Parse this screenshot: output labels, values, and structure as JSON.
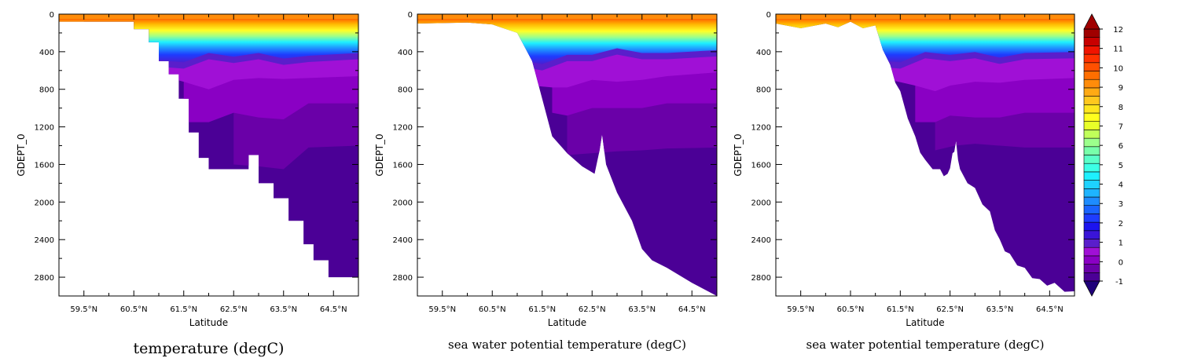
{
  "chart_data": {
    "type": "heatmap",
    "x_ticks": [
      "59.5°N",
      "60.5°N",
      "61.5°N",
      "62.5°N",
      "63.5°N",
      "64.5°N"
    ],
    "x_tick_values": [
      59.5,
      60.5,
      61.5,
      62.5,
      63.5,
      64.5
    ],
    "xlim": [
      59.0,
      65.0
    ],
    "y_ticks": [
      "0",
      "400",
      "800",
      "1200",
      "1600",
      "2000",
      "2400",
      "2800"
    ],
    "y_tick_values": [
      0,
      400,
      800,
      1200,
      1600,
      2000,
      2400,
      2800
    ],
    "ylim": [
      3000,
      0
    ],
    "colorbar": {
      "labels": [
        "12",
        "11",
        "10",
        "9",
        "8",
        "7",
        "6",
        "5",
        "4",
        "3",
        "2",
        "1",
        "0",
        "-1"
      ],
      "label_values": [
        12,
        11,
        10,
        9,
        8,
        7,
        6,
        5,
        4,
        3,
        2,
        1,
        0,
        -1
      ],
      "level_step": 0.5,
      "colors": [
        "#4b0096",
        "#6a00a8",
        "#8a00c4",
        "#a010d6",
        "#5a1ecb",
        "#3a14d8",
        "#1c14ef",
        "#1e3cff",
        "#1a64ff",
        "#1e8cff",
        "#1eb4ff",
        "#1ed2ff",
        "#1ef0ff",
        "#3cffe6",
        "#5affc8",
        "#78ffaa",
        "#9cff8c",
        "#c0ff5a",
        "#e8ff28",
        "#ffff1e",
        "#ffe61e",
        "#ffc81e",
        "#ffaa14",
        "#ff8c0a",
        "#ff6e00",
        "#ff5000",
        "#ff3200",
        "#f01400",
        "#c80000",
        "#a00000"
      ],
      "extend": "both"
    },
    "panels": [
      {
        "title": "temperature (degC)",
        "xlabel": "Latitude",
        "ylabel": "GDEPT_0",
        "bathymetry_style": "stepped",
        "bottom_depth": [
          [
            59.0,
            80
          ],
          [
            60.0,
            80
          ],
          [
            60.5,
            160
          ],
          [
            60.8,
            300
          ],
          [
            61.0,
            500
          ],
          [
            61.2,
            640
          ],
          [
            61.4,
            900
          ],
          [
            61.6,
            1260
          ],
          [
            61.8,
            1530
          ],
          [
            62.0,
            1650
          ],
          [
            62.6,
            1650
          ],
          [
            62.8,
            1500
          ],
          [
            63.0,
            1800
          ],
          [
            63.3,
            1960
          ],
          [
            63.6,
            2200
          ],
          [
            63.9,
            2450
          ],
          [
            64.1,
            2620
          ],
          [
            64.4,
            2800
          ],
          [
            65.0,
            2800
          ]
        ],
        "isotherm_depths": [
          {
            "t": 1,
            "depth": [
              [
                59.5,
                500
              ],
              [
                61.0,
                560
              ],
              [
                61.5,
                580
              ],
              [
                62.0,
                480
              ],
              [
                62.5,
                520
              ],
              [
                63.0,
                480
              ],
              [
                63.5,
                540
              ],
              [
                64.0,
                510
              ],
              [
                65.0,
                480
              ]
            ]
          },
          {
            "t": 0,
            "depth": [
              [
                61.0,
                650
              ],
              [
                61.5,
                720
              ],
              [
                62.0,
                800
              ],
              [
                62.5,
                700
              ],
              [
                63.0,
                680
              ],
              [
                63.5,
                690
              ],
              [
                64.0,
                680
              ],
              [
                65.0,
                660
              ]
            ]
          },
          {
            "t": -0.5,
            "depth": [
              [
                61.5,
                1150
              ],
              [
                62.0,
                1150
              ],
              [
                62.5,
                1050
              ],
              [
                63.0,
                1100
              ],
              [
                63.5,
                1120
              ],
              [
                64.0,
                950
              ],
              [
                65.0,
                950
              ]
            ]
          },
          {
            "t": -1,
            "depth": [
              [
                62.5,
                1600
              ],
              [
                63.0,
                1620
              ],
              [
                63.5,
                1650
              ],
              [
                64.0,
                1420
              ],
              [
                65.0,
                1400
              ]
            ]
          }
        ]
      },
      {
        "title": "sea water potential temperature (degC)",
        "xlabel": "Latitude",
        "ylabel": "GDEPT_0",
        "bathymetry_style": "smooth",
        "bottom_depth": [
          [
            59.0,
            100
          ],
          [
            60.0,
            90
          ],
          [
            60.5,
            110
          ],
          [
            61.0,
            200
          ],
          [
            61.3,
            500
          ],
          [
            61.5,
            900
          ],
          [
            61.7,
            1300
          ],
          [
            62.0,
            1480
          ],
          [
            62.3,
            1620
          ],
          [
            62.55,
            1700
          ],
          [
            62.65,
            1450
          ],
          [
            62.7,
            1280
          ],
          [
            62.78,
            1600
          ],
          [
            63.0,
            1900
          ],
          [
            63.3,
            2200
          ],
          [
            63.5,
            2500
          ],
          [
            63.7,
            2620
          ],
          [
            64.0,
            2700
          ],
          [
            64.5,
            2860
          ],
          [
            65.0,
            3000
          ]
        ],
        "isotherm_depths": [
          {
            "t": 1,
            "depth": [
              [
                61.0,
                550
              ],
              [
                61.5,
                600
              ],
              [
                62.0,
                500
              ],
              [
                62.5,
                500
              ],
              [
                63.0,
                430
              ],
              [
                63.5,
                480
              ],
              [
                64.0,
                480
              ],
              [
                65.0,
                450
              ]
            ]
          },
          {
            "t": 0,
            "depth": [
              [
                61.3,
                760
              ],
              [
                61.7,
                780
              ],
              [
                62.0,
                780
              ],
              [
                62.5,
                700
              ],
              [
                63.0,
                720
              ],
              [
                63.5,
                700
              ],
              [
                64.0,
                660
              ],
              [
                65.0,
                620
              ]
            ]
          },
          {
            "t": -0.5,
            "depth": [
              [
                61.7,
                1050
              ],
              [
                62.0,
                1080
              ],
              [
                62.5,
                1000
              ],
              [
                63.0,
                1000
              ],
              [
                63.5,
                1000
              ],
              [
                64.0,
                950
              ],
              [
                65.0,
                950
              ]
            ]
          },
          {
            "t": -1,
            "depth": [
              [
                62.0,
                1500
              ],
              [
                62.5,
                1480
              ],
              [
                63.0,
                1460
              ],
              [
                63.5,
                1450
              ],
              [
                64.0,
                1430
              ],
              [
                65.0,
                1420
              ]
            ]
          }
        ]
      },
      {
        "title": "sea water potential temperature (degC)",
        "xlabel": "Latitude",
        "ylabel": "GDEPT_0",
        "bathymetry_style": "jagged",
        "bottom_depth": [
          [
            59.0,
            100
          ],
          [
            60.0,
            100
          ],
          [
            60.5,
            80
          ],
          [
            61.0,
            120
          ],
          [
            61.3,
            540
          ],
          [
            61.5,
            820
          ],
          [
            61.8,
            1300
          ],
          [
            62.0,
            1550
          ],
          [
            62.3,
            1650
          ],
          [
            62.45,
            1700
          ],
          [
            62.55,
            1480
          ],
          [
            62.62,
            1350
          ],
          [
            62.7,
            1650
          ],
          [
            63.0,
            1850
          ],
          [
            63.3,
            2100
          ],
          [
            63.5,
            2400
          ],
          [
            63.7,
            2550
          ],
          [
            64.0,
            2700
          ],
          [
            64.3,
            2820
          ],
          [
            64.6,
            2860
          ],
          [
            65.0,
            2950
          ]
        ],
        "isotherm_depths": [
          {
            "t": 1,
            "depth": [
              [
                61.0,
                560
              ],
              [
                61.5,
                580
              ],
              [
                62.0,
                470
              ],
              [
                62.5,
                500
              ],
              [
                63.0,
                470
              ],
              [
                63.5,
                530
              ],
              [
                64.0,
                480
              ],
              [
                65.0,
                470
              ]
            ]
          },
          {
            "t": 0,
            "depth": [
              [
                61.3,
                700
              ],
              [
                61.8,
                760
              ],
              [
                62.2,
                820
              ],
              [
                62.5,
                760
              ],
              [
                63.0,
                720
              ],
              [
                63.5,
                730
              ],
              [
                64.0,
                700
              ],
              [
                65.0,
                680
              ]
            ]
          },
          {
            "t": -0.5,
            "depth": [
              [
                61.8,
                1150
              ],
              [
                62.2,
                1150
              ],
              [
                62.5,
                1080
              ],
              [
                63.0,
                1100
              ],
              [
                63.5,
                1100
              ],
              [
                64.0,
                1050
              ],
              [
                65.0,
                1050
              ]
            ]
          },
          {
            "t": -1,
            "depth": [
              [
                62.2,
                1450
              ],
              [
                62.6,
                1400
              ],
              [
                63.0,
                1380
              ],
              [
                63.5,
                1400
              ],
              [
                64.0,
                1420
              ],
              [
                65.0,
                1420
              ]
            ]
          }
        ]
      }
    ]
  }
}
